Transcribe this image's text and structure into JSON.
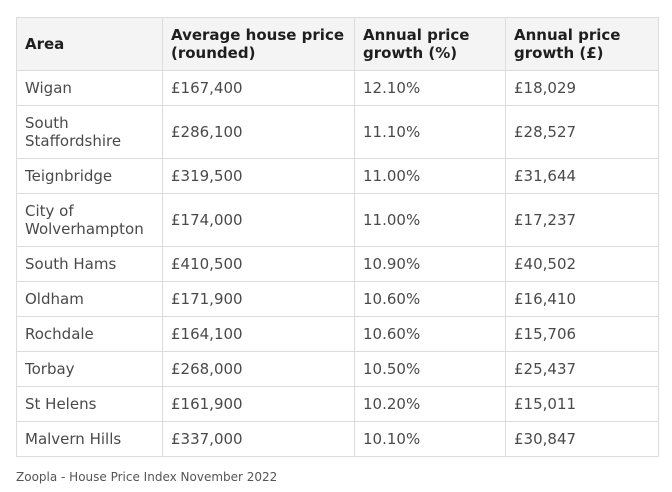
{
  "table": {
    "headers": [
      "Area",
      "Average house price (rounded)",
      "Annual price growth (%)",
      "Annual price growth (£)"
    ],
    "rows": [
      [
        "Wigan",
        "£167,400",
        "12.10%",
        "£18,029"
      ],
      [
        "South Staffordshire",
        "£286,100",
        "11.10%",
        "£28,527"
      ],
      [
        "Teignbridge",
        "£319,500",
        "11.00%",
        "£31,644"
      ],
      [
        "City of Wolverhampton",
        "£174,000",
        "11.00%",
        "£17,237"
      ],
      [
        "South Hams",
        "£410,500",
        "10.90%",
        "£40,502"
      ],
      [
        "Oldham",
        "£171,900",
        "10.60%",
        "£16,410"
      ],
      [
        "Rochdale",
        "£164,100",
        "10.60%",
        "£15,706"
      ],
      [
        "Torbay",
        "£268,000",
        "10.50%",
        "£25,437"
      ],
      [
        "St Helens",
        "£161,900",
        "10.20%",
        "£15,011"
      ],
      [
        "Malvern Hills",
        "£337,000",
        "10.10%",
        "£30,847"
      ]
    ]
  },
  "source_note": "Zoopla - House Price Index November 2022"
}
